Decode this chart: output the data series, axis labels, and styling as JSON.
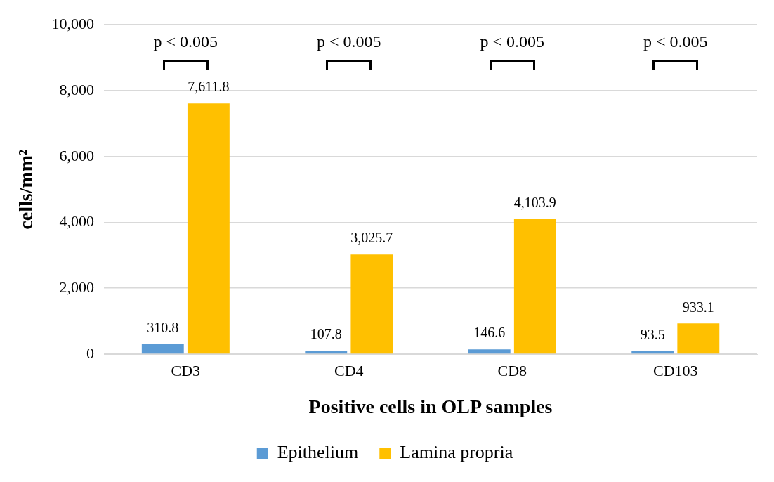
{
  "chart_data": {
    "type": "bar",
    "xlabel": "Positive cells in OLP samples",
    "ylabel": "cells/mm²",
    "categories": [
      "CD3",
      "CD4",
      "CD8",
      "CD103"
    ],
    "series": [
      {
        "name": "Epithelium",
        "color": "#5b9bd5",
        "values": [
          310.8,
          107.8,
          146.6,
          93.5
        ],
        "value_labels": [
          "310.8",
          "107.8",
          "146.6",
          "93.5"
        ]
      },
      {
        "name": "Lamina propria",
        "color": "#ffc000",
        "values": [
          7611.8,
          3025.7,
          4103.9,
          933.1
        ],
        "value_labels": [
          "7,611.8",
          "3,025.7",
          "4,103.9",
          "933.1"
        ]
      }
    ],
    "ylim": [
      0,
      10000
    ],
    "yticks": [
      0,
      {
        "value": 2000,
        "label": "2,000"
      },
      {
        "value": 4000,
        "label": "4,000"
      },
      {
        "value": 6000,
        "label": "6,000"
      },
      {
        "value": 8000,
        "label": "8,000"
      },
      {
        "value": 10000,
        "label": "10,000"
      }
    ],
    "grid": "y",
    "legend": "bottom",
    "annotations": [
      "p < 0.005",
      "p < 0.005",
      "p < 0.005",
      "p < 0.005"
    ]
  }
}
